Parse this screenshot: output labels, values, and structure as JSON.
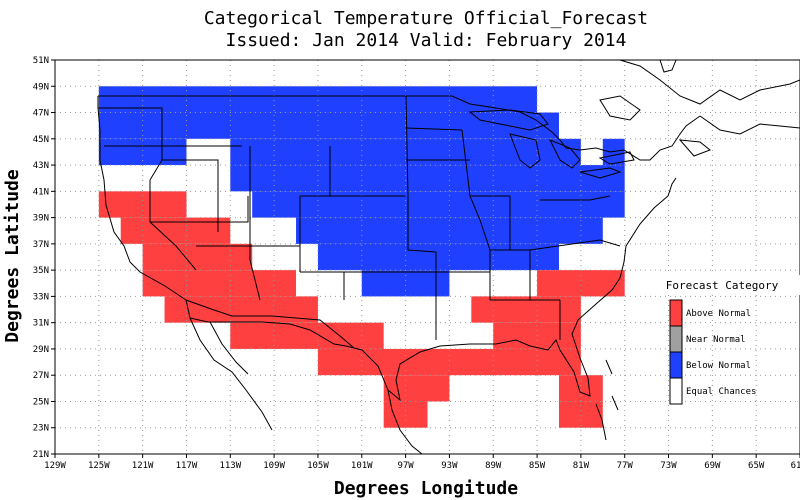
{
  "title_line1": "Categorical Temperature Official_Forecast",
  "title_line2": "Issued: Jan 2014 Valid: February 2014",
  "x_axis_label": "Degrees Longitude",
  "y_axis_label": "Degrees Latitude",
  "lon_ticks": [
    "129W",
    "125W",
    "121W",
    "117W",
    "113W",
    "109W",
    "105W",
    "101W",
    "97W",
    "93W",
    "89W",
    "85W",
    "81W",
    "77W",
    "73W",
    "69W",
    "65W",
    "61"
  ],
  "lat_ticks": [
    "51N",
    "49N",
    "47N",
    "45N",
    "43N",
    "41N",
    "39N",
    "37N",
    "35N",
    "33N",
    "31N",
    "29N",
    "27N",
    "25N",
    "23N",
    "21N"
  ],
  "legend": {
    "title": "Forecast Category",
    "items": [
      {
        "label": "Above Normal",
        "color": "#ff4040"
      },
      {
        "label": "Near Normal",
        "color": "#a0a0a0"
      },
      {
        "label": "Below Normal",
        "color": "#2040ff"
      },
      {
        "label": "Equal Chances",
        "color": "#ffffff"
      }
    ]
  },
  "map_extent": {
    "lon_min": -129,
    "lon_max": -61,
    "lat_min": 21,
    "lat_max": 51
  },
  "grid_cell_degrees": 2,
  "forecast_rows": [
    {
      "lat_top": 49,
      "segments": [
        {
          "lon_west": -125,
          "lon_east": -85,
          "category": "below"
        }
      ]
    },
    {
      "lat_top": 47,
      "segments": [
        {
          "lon_west": -125,
          "lon_east": -83,
          "category": "below"
        }
      ]
    },
    {
      "lat_top": 45,
      "segments": [
        {
          "lon_west": -125,
          "lon_east": -117,
          "category": "below"
        },
        {
          "lon_west": -113,
          "lon_east": -81,
          "category": "below"
        },
        {
          "lon_west": -79,
          "lon_east": -77,
          "category": "below"
        }
      ]
    },
    {
      "lat_top": 43,
      "segments": [
        {
          "lon_west": -113,
          "lon_east": -77,
          "category": "below"
        }
      ]
    },
    {
      "lat_top": 41,
      "segments": [
        {
          "lon_west": -111,
          "lon_east": -77,
          "category": "below"
        }
      ]
    },
    {
      "lat_top": 39,
      "segments": [
        {
          "lon_west": -107,
          "lon_east": -79,
          "category": "below"
        }
      ]
    },
    {
      "lat_top": 37,
      "segments": [
        {
          "lon_west": -105,
          "lon_east": -83,
          "category": "below"
        }
      ]
    },
    {
      "lat_top": 35,
      "segments": [
        {
          "lon_west": -101,
          "lon_east": -93,
          "category": "below"
        }
      ]
    },
    {
      "lat_top": 41,
      "segments": [
        {
          "lon_west": -125,
          "lon_east": -117,
          "category": "above"
        }
      ]
    },
    {
      "lat_top": 39,
      "segments": [
        {
          "lon_west": -123,
          "lon_east": -113,
          "category": "above"
        }
      ]
    },
    {
      "lat_top": 37,
      "segments": [
        {
          "lon_west": -121,
          "lon_east": -111,
          "category": "above"
        }
      ]
    },
    {
      "lat_top": 35,
      "segments": [
        {
          "lon_west": -121,
          "lon_east": -107,
          "category": "above"
        },
        {
          "lon_west": -85,
          "lon_east": -77,
          "category": "above"
        }
      ]
    },
    {
      "lat_top": 33,
      "segments": [
        {
          "lon_west": -119,
          "lon_east": -105,
          "category": "above"
        },
        {
          "lon_west": -91,
          "lon_east": -81,
          "category": "above"
        }
      ]
    },
    {
      "lat_top": 31,
      "segments": [
        {
          "lon_west": -113,
          "lon_east": -99,
          "category": "above"
        },
        {
          "lon_west": -89,
          "lon_east": -81,
          "category": "above"
        }
      ]
    },
    {
      "lat_top": 29,
      "segments": [
        {
          "lon_west": -105,
          "lon_east": -81,
          "category": "above"
        }
      ]
    },
    {
      "lat_top": 27,
      "segments": [
        {
          "lon_west": -99,
          "lon_east": -93,
          "category": "above"
        },
        {
          "lon_west": -83,
          "lon_east": -79,
          "category": "above"
        }
      ]
    },
    {
      "lat_top": 25,
      "segments": [
        {
          "lon_west": -99,
          "lon_east": -95,
          "category": "above"
        },
        {
          "lon_west": -83,
          "lon_east": -79,
          "category": "above"
        }
      ]
    }
  ],
  "category_colors": {
    "above": "#ff4040",
    "near": "#a0a0a0",
    "below": "#2040ff",
    "equal": "#ffffff"
  }
}
